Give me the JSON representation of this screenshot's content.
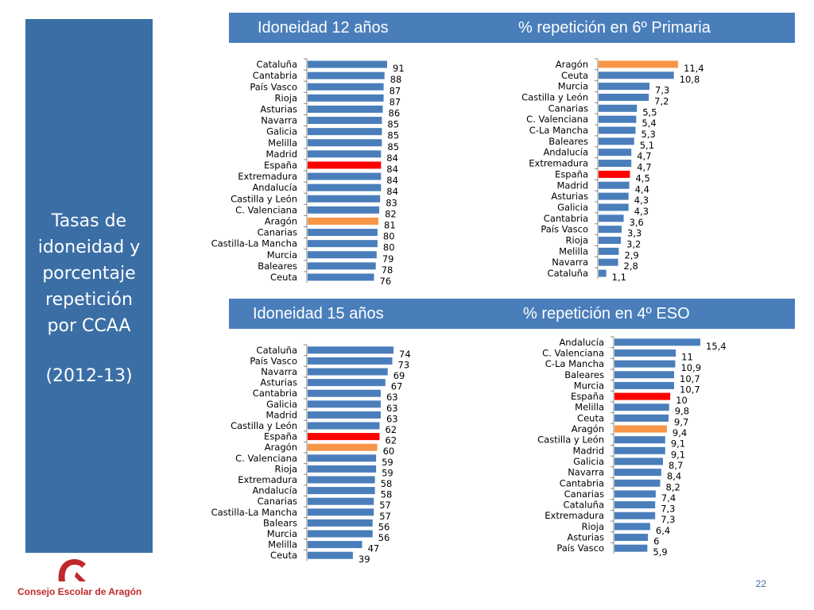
{
  "side": {
    "line1": "Tasas de",
    "line2": "idoneidad y",
    "line3": "porcentaje",
    "line4": "repetición",
    "line5": "por CCAA",
    "years": "(2012-13)"
  },
  "banners": {
    "top_left": "Idoneidad 12 años",
    "top_right": "% repetición en 6º Primaria",
    "bottom_left": "Idoneidad 15 años",
    "bottom_right": "% repetición en 4º ESO"
  },
  "colors": {
    "bar": "#4a7ebb",
    "espana": "#ff0000",
    "aragon": "#f79646",
    "panel": "#3b6ea5"
  },
  "chart_data": [
    {
      "type": "bar",
      "orientation": "horizontal",
      "title": "Idoneidad 12 años",
      "xlim": [
        0,
        100
      ],
      "categories": [
        "Cataluña",
        "Cantabria",
        "País Vasco",
        "Rioja",
        "Asturias",
        "Navarra",
        "Galicia",
        "Melilla",
        "Madrid",
        "España",
        "Extremadura",
        "Andalucía",
        "Castilla y León",
        "C. Valenciana",
        "Aragón",
        "Canarias",
        "Castilla-La Mancha",
        "Murcia",
        "Baleares",
        "Ceuta"
      ],
      "values": [
        91,
        88,
        87,
        87,
        86,
        85,
        85,
        85,
        84,
        84,
        84,
        84,
        83,
        82,
        81,
        80,
        80,
        79,
        78,
        76
      ],
      "labels": [
        "91",
        "88",
        "87",
        "87",
        "86",
        "85",
        "85",
        "85",
        "84",
        "84",
        "84",
        "84",
        "83",
        "82",
        "81",
        "80",
        "80",
        "79",
        "78",
        "76"
      ]
    },
    {
      "type": "bar",
      "orientation": "horizontal",
      "title": "% repetición en 6º Primaria",
      "xlim": [
        0,
        12
      ],
      "categories": [
        "Aragón",
        "Ceuta",
        "Murcia",
        "Castilla y León",
        "Canarias",
        "C. Valenciana",
        "C-La Mancha",
        "Baleares",
        "Andalucía",
        "Extremadura",
        "España",
        "Madrid",
        "Asturias",
        "Galicia",
        "Cantabria",
        "País Vasco",
        "Rioja",
        "Melilla",
        "Navarra",
        "Cataluña"
      ],
      "values": [
        11.4,
        10.8,
        7.3,
        7.2,
        5.5,
        5.4,
        5.3,
        5.1,
        4.7,
        4.7,
        4.5,
        4.4,
        4.3,
        4.3,
        3.6,
        3.3,
        3.2,
        2.9,
        2.8,
        1.1
      ],
      "labels": [
        "11,4",
        "10,8",
        "7,3",
        "7,2",
        "5,5",
        "5,4",
        "5,3",
        "5,1",
        "4,7",
        "4,7",
        "4,5",
        "4,4",
        "4,3",
        "4,3",
        "3,6",
        "3,3",
        "3,2",
        "2,9",
        "2,8",
        "1,1"
      ]
    },
    {
      "type": "bar",
      "orientation": "horizontal",
      "title": "Idoneidad 15 años",
      "xlim": [
        0,
        80
      ],
      "categories": [
        "Cataluña",
        "País Vasco",
        "Navarra",
        "Asturias",
        "Cantabria",
        "Galicia",
        "Madrid",
        "Castilla y León",
        "España",
        "Aragón",
        "C. Valenciana",
        "Rioja",
        "Extremadura",
        "Andalucía",
        "Canarias",
        "Castilla-La Mancha",
        "Balears",
        "Murcia",
        "Melilla",
        "Ceuta"
      ],
      "values": [
        74,
        73,
        69,
        67,
        63,
        63,
        63,
        62,
        62,
        60,
        59,
        59,
        58,
        58,
        57,
        57,
        56,
        56,
        47,
        39
      ],
      "labels": [
        "74",
        "73",
        "69",
        "67",
        "63",
        "63",
        "63",
        "62",
        "62",
        "60",
        "59",
        "59",
        "58",
        "58",
        "57",
        "57",
        "56",
        "56",
        "47",
        "39"
      ]
    },
    {
      "type": "bar",
      "orientation": "horizontal",
      "title": "% repetición en 4º ESO",
      "xlim": [
        0,
        16
      ],
      "categories": [
        "Andalucía",
        "C. Valenciana",
        "C-La Mancha",
        "Baleares",
        "Murcia",
        "España",
        "Melilla",
        "Ceuta",
        "Aragón",
        "Castilla y León",
        "Madrid",
        "Galicia",
        "Navarra",
        "Cantabria",
        "Canarias",
        "Cataluña",
        "Extremadura",
        "Rioja",
        "Asturias",
        "País Vasco"
      ],
      "values": [
        15.4,
        11,
        10.9,
        10.7,
        10.7,
        10,
        9.8,
        9.7,
        9.4,
        9.1,
        9.1,
        8.7,
        8.4,
        8.2,
        7.4,
        7.3,
        7.3,
        6.4,
        6,
        5.9
      ],
      "labels": [
        "15,4",
        "11",
        "10,9",
        "10,7",
        "10,7",
        "10",
        "9,8",
        "9,7",
        "9,4",
        "9,1",
        "9,1",
        "8,7",
        "8,4",
        "8,2",
        "7,4",
        "7,3",
        "7,3",
        "6,4",
        "6",
        "5,9"
      ]
    }
  ],
  "footer": {
    "org": "Consejo Escolar de Aragón",
    "page": "22"
  }
}
